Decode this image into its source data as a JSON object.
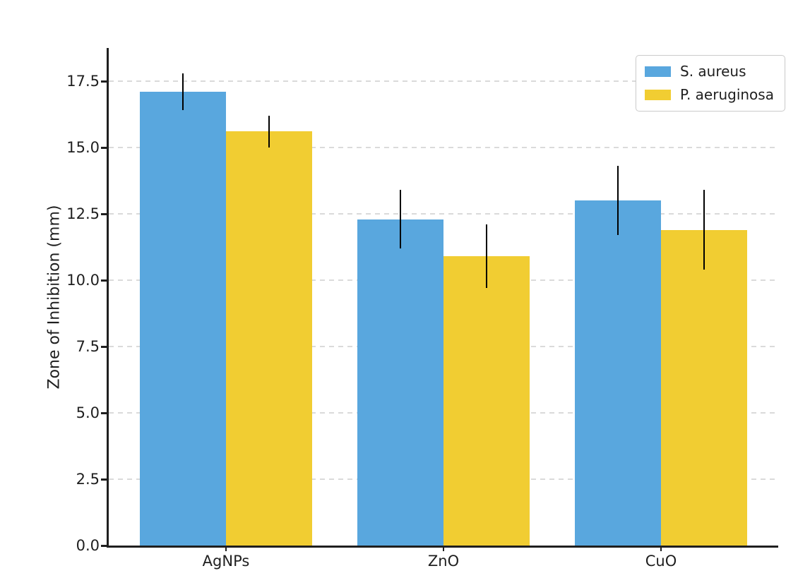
{
  "figure": {
    "background": "#ffffff",
    "title": ""
  },
  "chart_data": {
    "type": "bar",
    "title": "",
    "xlabel": "",
    "ylabel": "Zone of Inhibition (mm)",
    "categories": [
      "AgNPs",
      "ZnO",
      "CuO"
    ],
    "series": [
      {
        "name": "S. aureus",
        "color": "#59A7DE",
        "values": [
          17.1,
          12.3,
          13.0
        ],
        "errors": [
          0.7,
          1.1,
          1.3
        ]
      },
      {
        "name": "P. aeruginosa",
        "color": "#F1CD32",
        "values": [
          15.6,
          10.9,
          11.9
        ],
        "errors": [
          0.6,
          1.2,
          1.5
        ]
      }
    ],
    "ylim": [
      0,
      18.75
    ],
    "yticks": [
      0.0,
      2.5,
      5.0,
      7.5,
      10.0,
      12.5,
      15.0,
      17.5
    ],
    "ytick_labels": [
      "0.0",
      "2.5",
      "5.0",
      "7.5",
      "10.0",
      "12.5",
      "15.0",
      "17.5"
    ],
    "grid": "horizontal-dashed",
    "gridline_color": "#dadada",
    "axis_color": "#1f1f1f",
    "error_bar_color": "#000000",
    "legend_position": "top-right"
  }
}
